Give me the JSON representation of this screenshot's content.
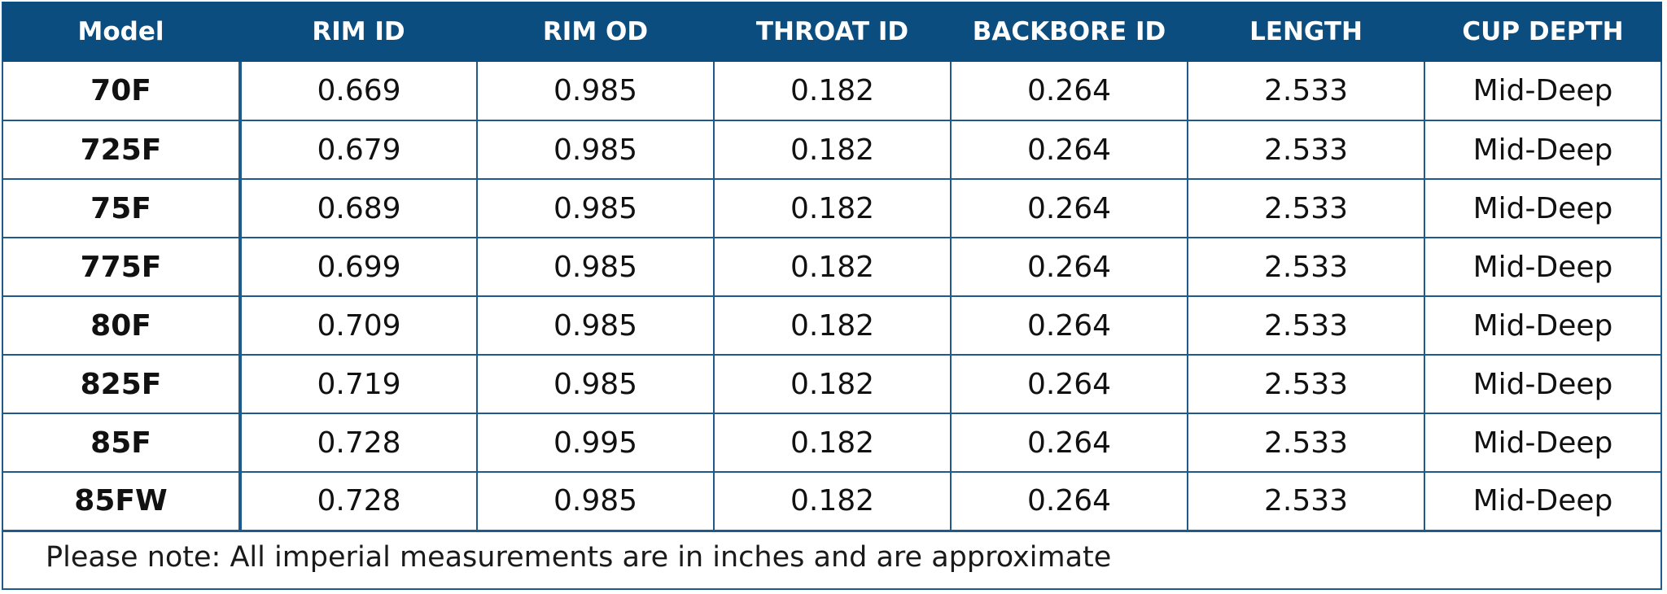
{
  "table": {
    "headers": [
      "Model",
      "RIM ID",
      "RIM OD",
      "THROAT ID",
      "BACKBORE ID",
      "LENGTH",
      "CUP DEPTH"
    ],
    "rows": [
      [
        "70F",
        "0.669",
        "0.985",
        "0.182",
        "0.264",
        "2.533",
        "Mid-Deep"
      ],
      [
        "725F",
        "0.679",
        "0.985",
        "0.182",
        "0.264",
        "2.533",
        "Mid-Deep"
      ],
      [
        "75F",
        "0.689",
        "0.985",
        "0.182",
        "0.264",
        "2.533",
        "Mid-Deep"
      ],
      [
        "775F",
        "0.699",
        "0.985",
        "0.182",
        "0.264",
        "2.533",
        "Mid-Deep"
      ],
      [
        "80F",
        "0.709",
        "0.985",
        "0.182",
        "0.264",
        "2.533",
        "Mid-Deep"
      ],
      [
        "825F",
        "0.719",
        "0.985",
        "0.182",
        "0.264",
        "2.533",
        "Mid-Deep"
      ],
      [
        "85F",
        "0.728",
        "0.995",
        "0.182",
        "0.264",
        "2.533",
        "Mid-Deep"
      ],
      [
        "85FW",
        "0.728",
        "0.985",
        "0.182",
        "0.264",
        "2.533",
        "Mid-Deep"
      ]
    ]
  },
  "note": "Please note: All imperial measurements are in inches and are approximate",
  "colors": {
    "header_bg": "#0c4d80",
    "border": "#1f5a8c",
    "header_text": "#ffffff"
  }
}
